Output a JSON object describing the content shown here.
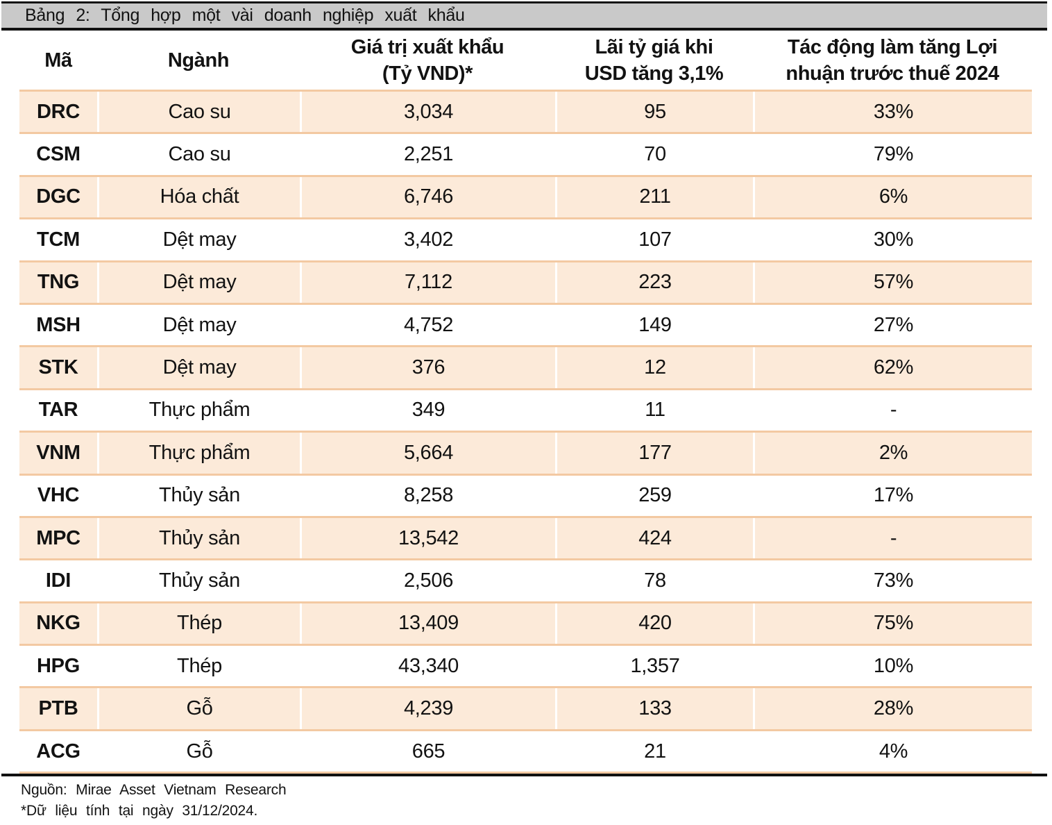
{
  "title": "Bảng 2: Tổng hợp một vài doanh nghiệp xuất khẩu",
  "table": {
    "columns": [
      {
        "key": "ticker",
        "label": "Mã"
      },
      {
        "key": "sector",
        "label": "Ngành"
      },
      {
        "key": "export_value",
        "label": "Giá trị xuất khẩu\n(Tỷ VND)*"
      },
      {
        "key": "fx_gain",
        "label": "Lãi tỷ giá khi\nUSD tăng 3,1%"
      },
      {
        "key": "profit_impact",
        "label": "Tác động làm tăng Lợi\nnhuận trước thuế 2024"
      }
    ],
    "rows": [
      {
        "ticker": "DRC",
        "sector": "Cao su",
        "export_value": "3,034",
        "fx_gain": "95",
        "profit_impact": "33%"
      },
      {
        "ticker": "CSM",
        "sector": "Cao su",
        "export_value": "2,251",
        "fx_gain": "70",
        "profit_impact": "79%"
      },
      {
        "ticker": "DGC",
        "sector": "Hóa chất",
        "export_value": "6,746",
        "fx_gain": "211",
        "profit_impact": "6%"
      },
      {
        "ticker": "TCM",
        "sector": "Dệt may",
        "export_value": "3,402",
        "fx_gain": "107",
        "profit_impact": "30%"
      },
      {
        "ticker": "TNG",
        "sector": "Dệt may",
        "export_value": "7,112",
        "fx_gain": "223",
        "profit_impact": "57%"
      },
      {
        "ticker": "MSH",
        "sector": "Dệt may",
        "export_value": "4,752",
        "fx_gain": "149",
        "profit_impact": "27%"
      },
      {
        "ticker": "STK",
        "sector": "Dệt may",
        "export_value": "376",
        "fx_gain": "12",
        "profit_impact": "62%"
      },
      {
        "ticker": "TAR",
        "sector": "Thực phẩm",
        "export_value": "349",
        "fx_gain": "11",
        "profit_impact": "-"
      },
      {
        "ticker": "VNM",
        "sector": "Thực phẩm",
        "export_value": "5,664",
        "fx_gain": "177",
        "profit_impact": "2%"
      },
      {
        "ticker": "VHC",
        "sector": "Thủy sản",
        "export_value": "8,258",
        "fx_gain": "259",
        "profit_impact": "17%"
      },
      {
        "ticker": "MPC",
        "sector": "Thủy sản",
        "export_value": "13,542",
        "fx_gain": "424",
        "profit_impact": "-"
      },
      {
        "ticker": "IDI",
        "sector": "Thủy sản",
        "export_value": "2,506",
        "fx_gain": "78",
        "profit_impact": "73%"
      },
      {
        "ticker": "NKG",
        "sector": "Thép",
        "export_value": "13,409",
        "fx_gain": "420",
        "profit_impact": "75%"
      },
      {
        "ticker": "HPG",
        "sector": "Thép",
        "export_value": "43,340",
        "fx_gain": "1,357",
        "profit_impact": "10%"
      },
      {
        "ticker": "PTB",
        "sector": "Gỗ",
        "export_value": "4,239",
        "fx_gain": "133",
        "profit_impact": "28%"
      },
      {
        "ticker": "ACG",
        "sector": "Gỗ",
        "export_value": "665",
        "fx_gain": "21",
        "profit_impact": "4%"
      }
    ]
  },
  "footer": {
    "source": "Nguồn: Mirae Asset Vietnam Research",
    "note": "*Dữ liệu tính tại ngày 31/12/2024."
  },
  "colors": {
    "row_highlight": "#fcead9",
    "row_separator": "#f3c9a2",
    "title_bar_bg": "#c9c9c9",
    "rule_black": "#111111"
  }
}
